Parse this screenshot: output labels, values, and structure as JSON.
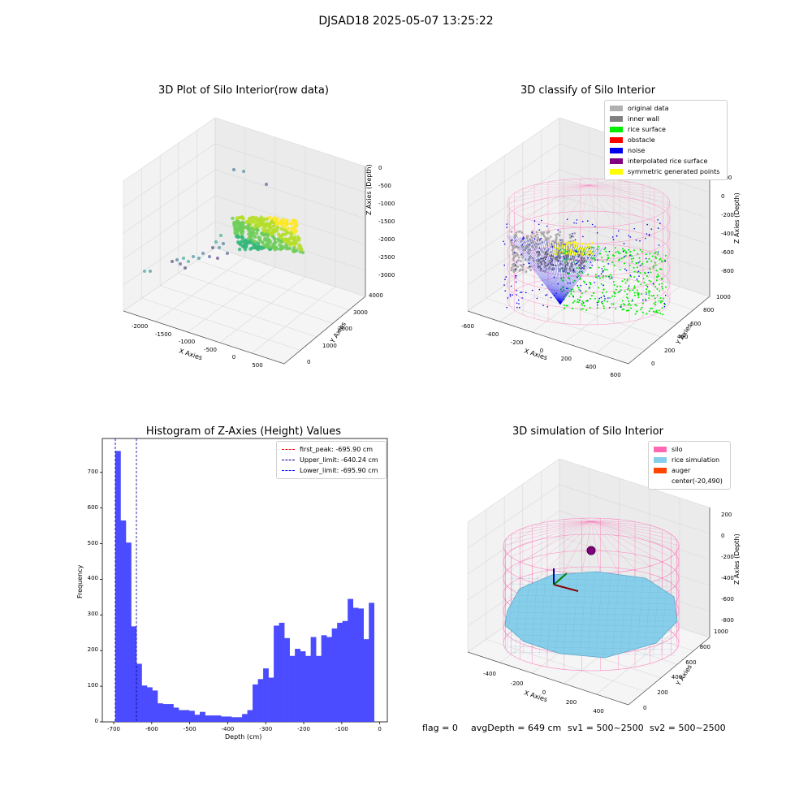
{
  "figure": {
    "suptitle": "DJSAD18 2025-05-07 13:25:22",
    "footer": {
      "flag": "flag = 0",
      "avg_depth": "avgDepth = 649 cm",
      "sv1": "sv1 = 500~2500",
      "sv2": "sv2 = 500~2500"
    }
  },
  "chart_data": [
    {
      "type": "scatter",
      "title": "3D Plot of Silo Interior(row data)",
      "xlabel": "X Axies",
      "ylabel": "Y Axies",
      "zlabel": "Z Axies (Depth)",
      "x_ticks": [
        "-2000",
        "-1500",
        "-1000",
        "-500",
        "0",
        "500"
      ],
      "y_ticks": [
        "0",
        "1000",
        "2000",
        "3000",
        "4000"
      ],
      "z_ticks": [
        "0",
        "-500",
        "-1000",
        "-1500",
        "-2000",
        "-2500",
        "-3000"
      ],
      "colormap": "viridis",
      "grid": true
    },
    {
      "type": "scatter",
      "title": "3D classify of Silo Interior",
      "xlabel": "X Axies",
      "ylabel": "Y Axies",
      "zlabel": "Z Axies (Depth)",
      "x_ticks": [
        "-600",
        "-400",
        "-200",
        "0",
        "200",
        "400",
        "600"
      ],
      "y_ticks": [
        "0",
        "200",
        "400",
        "600",
        "800",
        "1000"
      ],
      "z_ticks": [
        "200",
        "0",
        "-200",
        "-400",
        "-600",
        "-800"
      ],
      "legend_position": "top-right",
      "legend": [
        {
          "name": "original data",
          "color": "#b0b0b0"
        },
        {
          "name": "inner wall",
          "color": "#808080"
        },
        {
          "name": "rice surface",
          "color": "#00ee00"
        },
        {
          "name": "obstacle",
          "color": "#ff0000"
        },
        {
          "name": "noise",
          "color": "#0000ee"
        },
        {
          "name": "interpolated rice surface",
          "color": "#800080"
        },
        {
          "name": "symmetric generated points",
          "color": "#ffff00"
        }
      ],
      "wireframe_color": "#ff69b4",
      "grid": true
    },
    {
      "type": "bar",
      "title": "Histogram of Z-Axies (Height) Values",
      "xlabel": "Depth (cm)",
      "ylabel": "Frequency",
      "bar_color": "#4b4bff",
      "xlim": [
        -730,
        20
      ],
      "ylim": [
        0,
        795
      ],
      "x_ticks": [
        -700,
        -600,
        -500,
        -400,
        -300,
        -200,
        -100,
        0
      ],
      "y_ticks": [
        0,
        100,
        200,
        300,
        400,
        500,
        600,
        700
      ],
      "bin_width": 13.9,
      "bin_start": -695.9,
      "values": [
        760,
        565,
        503,
        268,
        163,
        102,
        97,
        88,
        52,
        50,
        50,
        40,
        33,
        33,
        31,
        20,
        28,
        18,
        18,
        18,
        15,
        15,
        13,
        13,
        22,
        33,
        105,
        120,
        150,
        124,
        270,
        278,
        235,
        185,
        205,
        198,
        185,
        238,
        185,
        243,
        238,
        262,
        278,
        283,
        345,
        320,
        318,
        232,
        334
      ],
      "reference_lines": [
        {
          "name": "first_peak: -695.90 cm",
          "x": -695.9,
          "color": "#ff0000"
        },
        {
          "name": "Upper_limit: -640.24 cm",
          "x": -640.24,
          "color": "#00008b"
        },
        {
          "name": "Lower_limit: -695.90 cm",
          "x": -695.9,
          "color": "#0000ff"
        }
      ],
      "legend_position": "top-right"
    },
    {
      "type": "scatter",
      "title": "3D simulation of Silo Interior",
      "xlabel": "X Axies",
      "ylabel": "Y Axies",
      "zlabel": "Z Axies (Depth)",
      "x_ticks": [
        "-400",
        "-200",
        "0",
        "200",
        "400"
      ],
      "y_ticks": [
        "0",
        "200",
        "400",
        "600",
        "800",
        "1000"
      ],
      "z_ticks": [
        "200",
        "0",
        "-200",
        "-400",
        "-600",
        "-800"
      ],
      "legend_position": "top-right",
      "legend": [
        {
          "name": "silo",
          "color": "#ff69b4"
        },
        {
          "name": "rice simulation",
          "color": "#87ceeb"
        },
        {
          "name": "auger",
          "color": "#ff4500"
        },
        {
          "name": "center(-20,490)",
          "color": "#ffffff"
        }
      ],
      "surface_color": "#87ceeb",
      "wireframe_color": "#ff69b4",
      "grid": true
    }
  ]
}
